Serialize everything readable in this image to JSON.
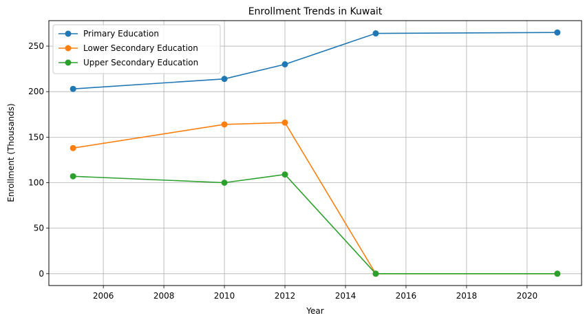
{
  "chart_data": {
    "type": "line",
    "title": "Enrollment Trends in Kuwait",
    "xlabel": "Year",
    "ylabel": "Enrollment (Thousands)",
    "xlim": [
      2004.2,
      2021.8
    ],
    "ylim": [
      -13,
      278
    ],
    "xticks": [
      2006,
      2008,
      2010,
      2012,
      2014,
      2016,
      2018,
      2020
    ],
    "yticks": [
      0,
      50,
      100,
      150,
      200,
      250
    ],
    "grid": true,
    "legend_position": "top-left",
    "x": [
      2005,
      2010,
      2012,
      2015,
      2021
    ],
    "series": [
      {
        "name": "Primary Education",
        "color": "#1f77b4",
        "values": [
          203,
          214,
          230,
          264,
          265
        ]
      },
      {
        "name": "Lower Secondary Education",
        "color": "#ff7f0e",
        "values": [
          138,
          164,
          166,
          0,
          0
        ]
      },
      {
        "name": "Upper Secondary Education",
        "color": "#2ca02c",
        "values": [
          107,
          100,
          109,
          0,
          0
        ]
      }
    ]
  }
}
